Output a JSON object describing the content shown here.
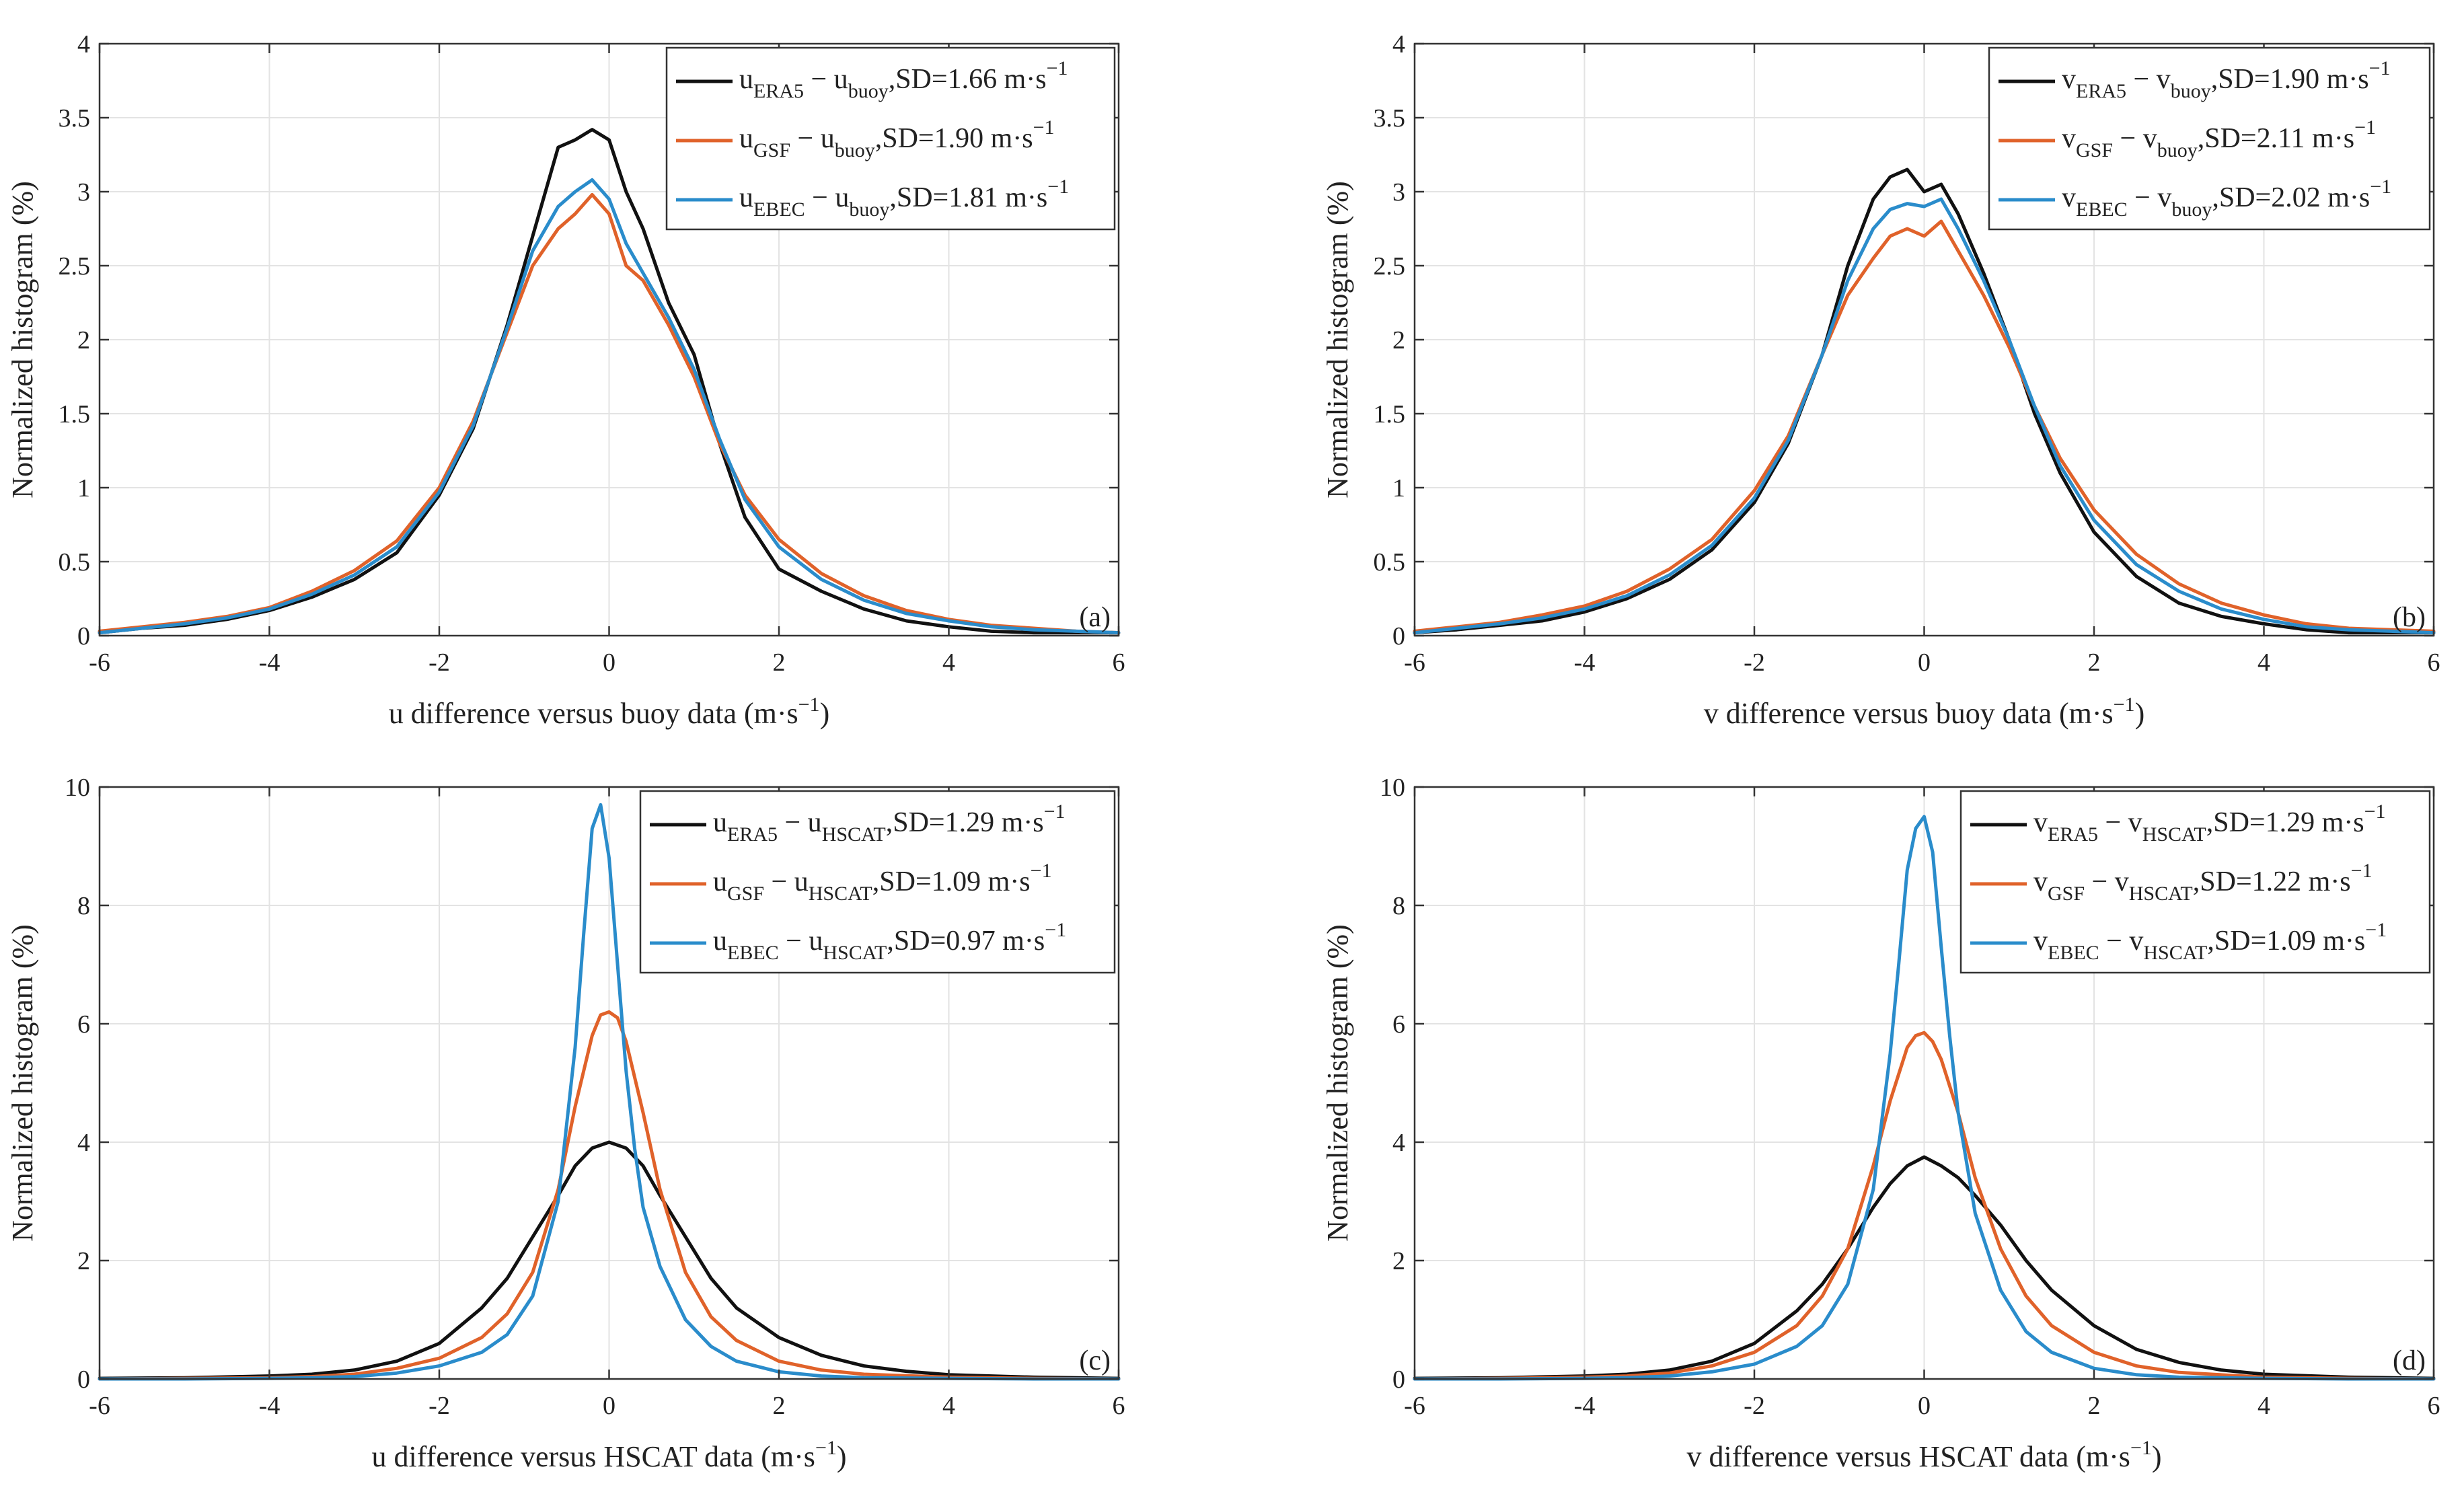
{
  "chart_data": [
    {
      "id": "a",
      "type": "line",
      "panel_label": "(a)",
      "xlabel": "u difference versus buoy data (m·s",
      "xlabel_unit_exp": "−1",
      "xlabel_end": ")",
      "ylabel": "Normalized histogram (%)",
      "xlim": [
        -6,
        6
      ],
      "ylim": [
        0,
        4
      ],
      "xticks": [
        -6,
        -4,
        -2,
        0,
        2,
        4,
        6
      ],
      "yticks": [
        0,
        0.5,
        1,
        1.5,
        2,
        2.5,
        3,
        3.5,
        4
      ],
      "ytick_labels": [
        "0",
        "0.5",
        "1",
        "1.5",
        "2",
        "2.5",
        "3",
        "3.5",
        "4"
      ],
      "grid": true,
      "legend_position": "top-right",
      "series": [
        {
          "name": "ERA5",
          "sym": "u",
          "sub1": "ERA5",
          "sub2": "buoy",
          "sd": "SD=1.66 m·s",
          "exp": "−1",
          "color": "#111111",
          "x": [
            -6,
            -5.5,
            -5,
            -4.5,
            -4,
            -3.5,
            -3,
            -2.5,
            -2,
            -1.6,
            -1.2,
            -0.9,
            -0.6,
            -0.4,
            -0.2,
            0,
            0.2,
            0.4,
            0.7,
            1,
            1.3,
            1.6,
            2,
            2.5,
            3,
            3.5,
            4,
            4.5,
            5,
            5.5,
            6
          ],
          "y": [
            0.02,
            0.05,
            0.07,
            0.11,
            0.17,
            0.26,
            0.38,
            0.56,
            0.95,
            1.4,
            2.1,
            2.7,
            3.3,
            3.35,
            3.42,
            3.35,
            3.0,
            2.75,
            2.25,
            1.9,
            1.3,
            0.8,
            0.45,
            0.3,
            0.18,
            0.1,
            0.06,
            0.03,
            0.02,
            0.02,
            0.02
          ]
        },
        {
          "name": "GSF",
          "sym": "u",
          "sub1": "GSF",
          "sub2": "buoy",
          "sd": "SD=1.90 m·s",
          "exp": "−1",
          "color": "#E0622A",
          "x": [
            -6,
            -5.5,
            -5,
            -4.5,
            -4,
            -3.5,
            -3,
            -2.5,
            -2,
            -1.6,
            -1.2,
            -0.9,
            -0.6,
            -0.4,
            -0.2,
            0,
            0.2,
            0.4,
            0.7,
            1,
            1.3,
            1.6,
            2,
            2.5,
            3,
            3.5,
            4,
            4.5,
            5,
            5.5,
            6
          ],
          "y": [
            0.03,
            0.06,
            0.09,
            0.13,
            0.19,
            0.3,
            0.44,
            0.64,
            1.0,
            1.45,
            2.05,
            2.5,
            2.75,
            2.85,
            2.98,
            2.85,
            2.5,
            2.4,
            2.1,
            1.75,
            1.3,
            0.95,
            0.65,
            0.42,
            0.27,
            0.17,
            0.11,
            0.07,
            0.05,
            0.03,
            0.02
          ]
        },
        {
          "name": "EBEC",
          "sym": "u",
          "sub1": "EBEC",
          "sub2": "buoy",
          "sd": "SD=1.81 m·s",
          "exp": "−1",
          "color": "#2A8CCB",
          "x": [
            -6,
            -5.5,
            -5,
            -4.5,
            -4,
            -3.5,
            -3,
            -2.5,
            -2,
            -1.6,
            -1.2,
            -0.9,
            -0.6,
            -0.4,
            -0.2,
            0,
            0.2,
            0.4,
            0.7,
            1,
            1.3,
            1.6,
            2,
            2.5,
            3,
            3.5,
            4,
            4.5,
            5,
            5.5,
            6
          ],
          "y": [
            0.02,
            0.05,
            0.08,
            0.12,
            0.18,
            0.28,
            0.41,
            0.6,
            0.97,
            1.42,
            2.08,
            2.6,
            2.9,
            3.0,
            3.08,
            2.95,
            2.65,
            2.45,
            2.15,
            1.8,
            1.33,
            0.92,
            0.6,
            0.38,
            0.24,
            0.15,
            0.1,
            0.06,
            0.04,
            0.03,
            0.02
          ]
        }
      ]
    },
    {
      "id": "b",
      "type": "line",
      "panel_label": "(b)",
      "xlabel": "v difference versus buoy data (m·s",
      "xlabel_unit_exp": "−1",
      "xlabel_end": ")",
      "ylabel": "Normalized histogram (%)",
      "xlim": [
        -6,
        6
      ],
      "ylim": [
        0,
        4
      ],
      "xticks": [
        -6,
        -4,
        -2,
        0,
        2,
        4,
        6
      ],
      "yticks": [
        0,
        0.5,
        1,
        1.5,
        2,
        2.5,
        3,
        3.5,
        4
      ],
      "ytick_labels": [
        "0",
        "0.5",
        "1",
        "1.5",
        "2",
        "2.5",
        "3",
        "3.5",
        "4"
      ],
      "grid": true,
      "legend_position": "top-right",
      "series": [
        {
          "name": "ERA5",
          "sym": "v",
          "sub1": "ERA5",
          "sub2": "buoy",
          "sd": "SD=1.90 m·s",
          "exp": "−1",
          "color": "#111111",
          "x": [
            -6,
            -5.5,
            -5,
            -4.5,
            -4,
            -3.5,
            -3,
            -2.5,
            -2,
            -1.6,
            -1.2,
            -0.9,
            -0.6,
            -0.4,
            -0.2,
            0,
            0.2,
            0.4,
            0.7,
            1,
            1.3,
            1.6,
            2,
            2.5,
            3,
            3.5,
            4,
            4.5,
            5,
            5.5,
            6
          ],
          "y": [
            0.02,
            0.04,
            0.07,
            0.1,
            0.16,
            0.25,
            0.38,
            0.58,
            0.9,
            1.3,
            1.9,
            2.5,
            2.95,
            3.1,
            3.15,
            3.0,
            3.05,
            2.85,
            2.45,
            2.0,
            1.5,
            1.1,
            0.7,
            0.4,
            0.22,
            0.13,
            0.08,
            0.04,
            0.02,
            0.02,
            0.02
          ]
        },
        {
          "name": "GSF",
          "sym": "v",
          "sub1": "GSF",
          "sub2": "buoy",
          "sd": "SD=2.11 m·s",
          "exp": "−1",
          "color": "#E0622A",
          "x": [
            -6,
            -5.5,
            -5,
            -4.5,
            -4,
            -3.5,
            -3,
            -2.5,
            -2,
            -1.6,
            -1.2,
            -0.9,
            -0.6,
            -0.4,
            -0.2,
            0,
            0.2,
            0.4,
            0.7,
            1,
            1.3,
            1.6,
            2,
            2.5,
            3,
            3.5,
            4,
            4.5,
            5,
            5.5,
            6
          ],
          "y": [
            0.03,
            0.06,
            0.09,
            0.14,
            0.2,
            0.3,
            0.45,
            0.65,
            0.98,
            1.35,
            1.9,
            2.3,
            2.55,
            2.7,
            2.75,
            2.7,
            2.8,
            2.6,
            2.3,
            1.95,
            1.55,
            1.2,
            0.85,
            0.55,
            0.35,
            0.22,
            0.14,
            0.08,
            0.05,
            0.04,
            0.03
          ]
        },
        {
          "name": "EBEC",
          "sym": "v",
          "sub1": "EBEC",
          "sub2": "buoy",
          "sd": "SD=2.02 m·s",
          "exp": "−1",
          "color": "#2A8CCB",
          "x": [
            -6,
            -5.5,
            -5,
            -4.5,
            -4,
            -3.5,
            -3,
            -2.5,
            -2,
            -1.6,
            -1.2,
            -0.9,
            -0.6,
            -0.4,
            -0.2,
            0,
            0.2,
            0.4,
            0.7,
            1,
            1.3,
            1.6,
            2,
            2.5,
            3,
            3.5,
            4,
            4.5,
            5,
            5.5,
            6
          ],
          "y": [
            0.02,
            0.05,
            0.08,
            0.12,
            0.18,
            0.27,
            0.41,
            0.61,
            0.93,
            1.32,
            1.9,
            2.4,
            2.75,
            2.88,
            2.92,
            2.9,
            2.95,
            2.75,
            2.4,
            2.0,
            1.55,
            1.15,
            0.78,
            0.48,
            0.3,
            0.18,
            0.11,
            0.06,
            0.04,
            0.03,
            0.02
          ]
        }
      ]
    },
    {
      "id": "c",
      "type": "line",
      "panel_label": "(c)",
      "xlabel": "u difference versus HSCAT data (m·s",
      "xlabel_unit_exp": "−1",
      "xlabel_end": ")",
      "ylabel": "Normalized histogram (%)",
      "xlim": [
        -6,
        6
      ],
      "ylim": [
        0,
        10
      ],
      "xticks": [
        -6,
        -4,
        -2,
        0,
        2,
        4,
        6
      ],
      "yticks": [
        0,
        2,
        4,
        6,
        8,
        10
      ],
      "ytick_labels": [
        "0",
        "2",
        "4",
        "6",
        "8",
        "10"
      ],
      "grid": true,
      "legend_position": "top-right",
      "series": [
        {
          "name": "ERA5",
          "sym": "u",
          "sub1": "ERA5",
          "sub2": "HSCAT",
          "sd": "SD=1.29 m·s",
          "exp": "−1",
          "color": "#111111",
          "x": [
            -6,
            -5,
            -4,
            -3.5,
            -3,
            -2.5,
            -2,
            -1.5,
            -1.2,
            -0.9,
            -0.6,
            -0.4,
            -0.2,
            0,
            0.2,
            0.4,
            0.6,
            0.9,
            1.2,
            1.5,
            2,
            2.5,
            3,
            3.5,
            4,
            5,
            6
          ],
          "y": [
            0.01,
            0.02,
            0.05,
            0.08,
            0.15,
            0.3,
            0.6,
            1.2,
            1.7,
            2.4,
            3.1,
            3.6,
            3.9,
            4.0,
            3.9,
            3.6,
            3.1,
            2.4,
            1.7,
            1.2,
            0.7,
            0.4,
            0.22,
            0.13,
            0.07,
            0.03,
            0.01
          ]
        },
        {
          "name": "GSF",
          "sym": "u",
          "sub1": "GSF",
          "sub2": "HSCAT",
          "sd": "SD=1.09 m·s",
          "exp": "−1",
          "color": "#E0622A",
          "x": [
            -6,
            -5,
            -4,
            -3.5,
            -3,
            -2.5,
            -2,
            -1.5,
            -1.2,
            -0.9,
            -0.6,
            -0.4,
            -0.2,
            -0.1,
            0,
            0.1,
            0.2,
            0.4,
            0.6,
            0.9,
            1.2,
            1.5,
            2,
            2.5,
            3,
            4,
            5,
            6
          ],
          "y": [
            0.0,
            0.01,
            0.02,
            0.04,
            0.08,
            0.18,
            0.35,
            0.7,
            1.1,
            1.8,
            3.2,
            4.6,
            5.8,
            6.15,
            6.2,
            6.1,
            5.7,
            4.5,
            3.2,
            1.8,
            1.05,
            0.65,
            0.3,
            0.15,
            0.08,
            0.03,
            0.01,
            0.0
          ]
        },
        {
          "name": "EBEC",
          "sym": "u",
          "sub1": "EBEC",
          "sub2": "HSCAT",
          "sd": "SD=0.97 m·s",
          "exp": "−1",
          "color": "#2A8CCB",
          "x": [
            -6,
            -5,
            -4,
            -3.5,
            -3,
            -2.5,
            -2,
            -1.5,
            -1.2,
            -0.9,
            -0.6,
            -0.4,
            -0.3,
            -0.2,
            -0.1,
            0,
            0.1,
            0.2,
            0.3,
            0.4,
            0.6,
            0.9,
            1.2,
            1.5,
            2,
            2.5,
            3,
            4,
            5,
            6
          ],
          "y": [
            0.0,
            0.0,
            0.01,
            0.02,
            0.04,
            0.1,
            0.22,
            0.45,
            0.75,
            1.4,
            3.0,
            5.6,
            7.5,
            9.3,
            9.7,
            8.8,
            7.0,
            5.2,
            3.9,
            2.9,
            1.9,
            1.0,
            0.55,
            0.3,
            0.12,
            0.05,
            0.02,
            0.01,
            0.0,
            0.0
          ]
        }
      ]
    },
    {
      "id": "d",
      "type": "line",
      "panel_label": "(d)",
      "xlabel": "v difference versus HSCAT data (m·s",
      "xlabel_unit_exp": "−1",
      "xlabel_end": ")",
      "ylabel": "Normalized histogram (%)",
      "xlim": [
        -6,
        6
      ],
      "ylim": [
        0,
        10
      ],
      "xticks": [
        -6,
        -4,
        -2,
        0,
        2,
        4,
        6
      ],
      "yticks": [
        0,
        2,
        4,
        6,
        8,
        10
      ],
      "ytick_labels": [
        "0",
        "2",
        "4",
        "6",
        "8",
        "10"
      ],
      "grid": true,
      "legend_position": "top-right",
      "series": [
        {
          "name": "ERA5",
          "sym": "v",
          "sub1": "ERA5",
          "sub2": "HSCAT",
          "sd": "SD=1.29 m·s",
          "exp": "−1",
          "color": "#111111",
          "x": [
            -6,
            -5,
            -4,
            -3.5,
            -3,
            -2.5,
            -2,
            -1.5,
            -1.2,
            -0.9,
            -0.6,
            -0.4,
            -0.2,
            0,
            0.2,
            0.4,
            0.6,
            0.9,
            1.2,
            1.5,
            2,
            2.5,
            3,
            3.5,
            4,
            5,
            6
          ],
          "y": [
            0.01,
            0.02,
            0.05,
            0.08,
            0.15,
            0.3,
            0.6,
            1.15,
            1.6,
            2.2,
            2.9,
            3.3,
            3.6,
            3.75,
            3.6,
            3.4,
            3.1,
            2.6,
            2.0,
            1.5,
            0.9,
            0.5,
            0.28,
            0.15,
            0.08,
            0.03,
            0.01
          ]
        },
        {
          "name": "GSF",
          "sym": "v",
          "sub1": "GSF",
          "sub2": "HSCAT",
          "sd": "SD=1.22 m·s",
          "exp": "−1",
          "color": "#E0622A",
          "x": [
            -6,
            -5,
            -4,
            -3.5,
            -3,
            -2.5,
            -2,
            -1.5,
            -1.2,
            -0.9,
            -0.6,
            -0.4,
            -0.2,
            -0.1,
            0,
            0.1,
            0.2,
            0.4,
            0.6,
            0.9,
            1.2,
            1.5,
            2,
            2.5,
            3,
            4,
            5,
            6
          ],
          "y": [
            0.0,
            0.01,
            0.03,
            0.05,
            0.1,
            0.22,
            0.45,
            0.9,
            1.4,
            2.2,
            3.6,
            4.7,
            5.6,
            5.8,
            5.85,
            5.7,
            5.4,
            4.5,
            3.4,
            2.2,
            1.4,
            0.9,
            0.45,
            0.22,
            0.11,
            0.03,
            0.01,
            0.0
          ]
        },
        {
          "name": "EBEC",
          "sym": "v",
          "sub1": "EBEC",
          "sub2": "HSCAT",
          "sd": "SD=1.09 m·s",
          "exp": "−1",
          "color": "#2A8CCB",
          "x": [
            -6,
            -5,
            -4,
            -3.5,
            -3,
            -2.5,
            -2,
            -1.5,
            -1.2,
            -0.9,
            -0.6,
            -0.4,
            -0.3,
            -0.2,
            -0.1,
            0,
            0.1,
            0.2,
            0.3,
            0.4,
            0.6,
            0.9,
            1.2,
            1.5,
            2,
            2.5,
            3,
            4,
            5,
            6
          ],
          "y": [
            0.0,
            0.0,
            0.01,
            0.02,
            0.05,
            0.12,
            0.25,
            0.55,
            0.9,
            1.6,
            3.2,
            5.5,
            7.0,
            8.6,
            9.3,
            9.5,
            8.9,
            7.3,
            5.8,
            4.5,
            2.8,
            1.5,
            0.8,
            0.45,
            0.18,
            0.07,
            0.03,
            0.01,
            0.0,
            0.0
          ]
        }
      ]
    }
  ]
}
